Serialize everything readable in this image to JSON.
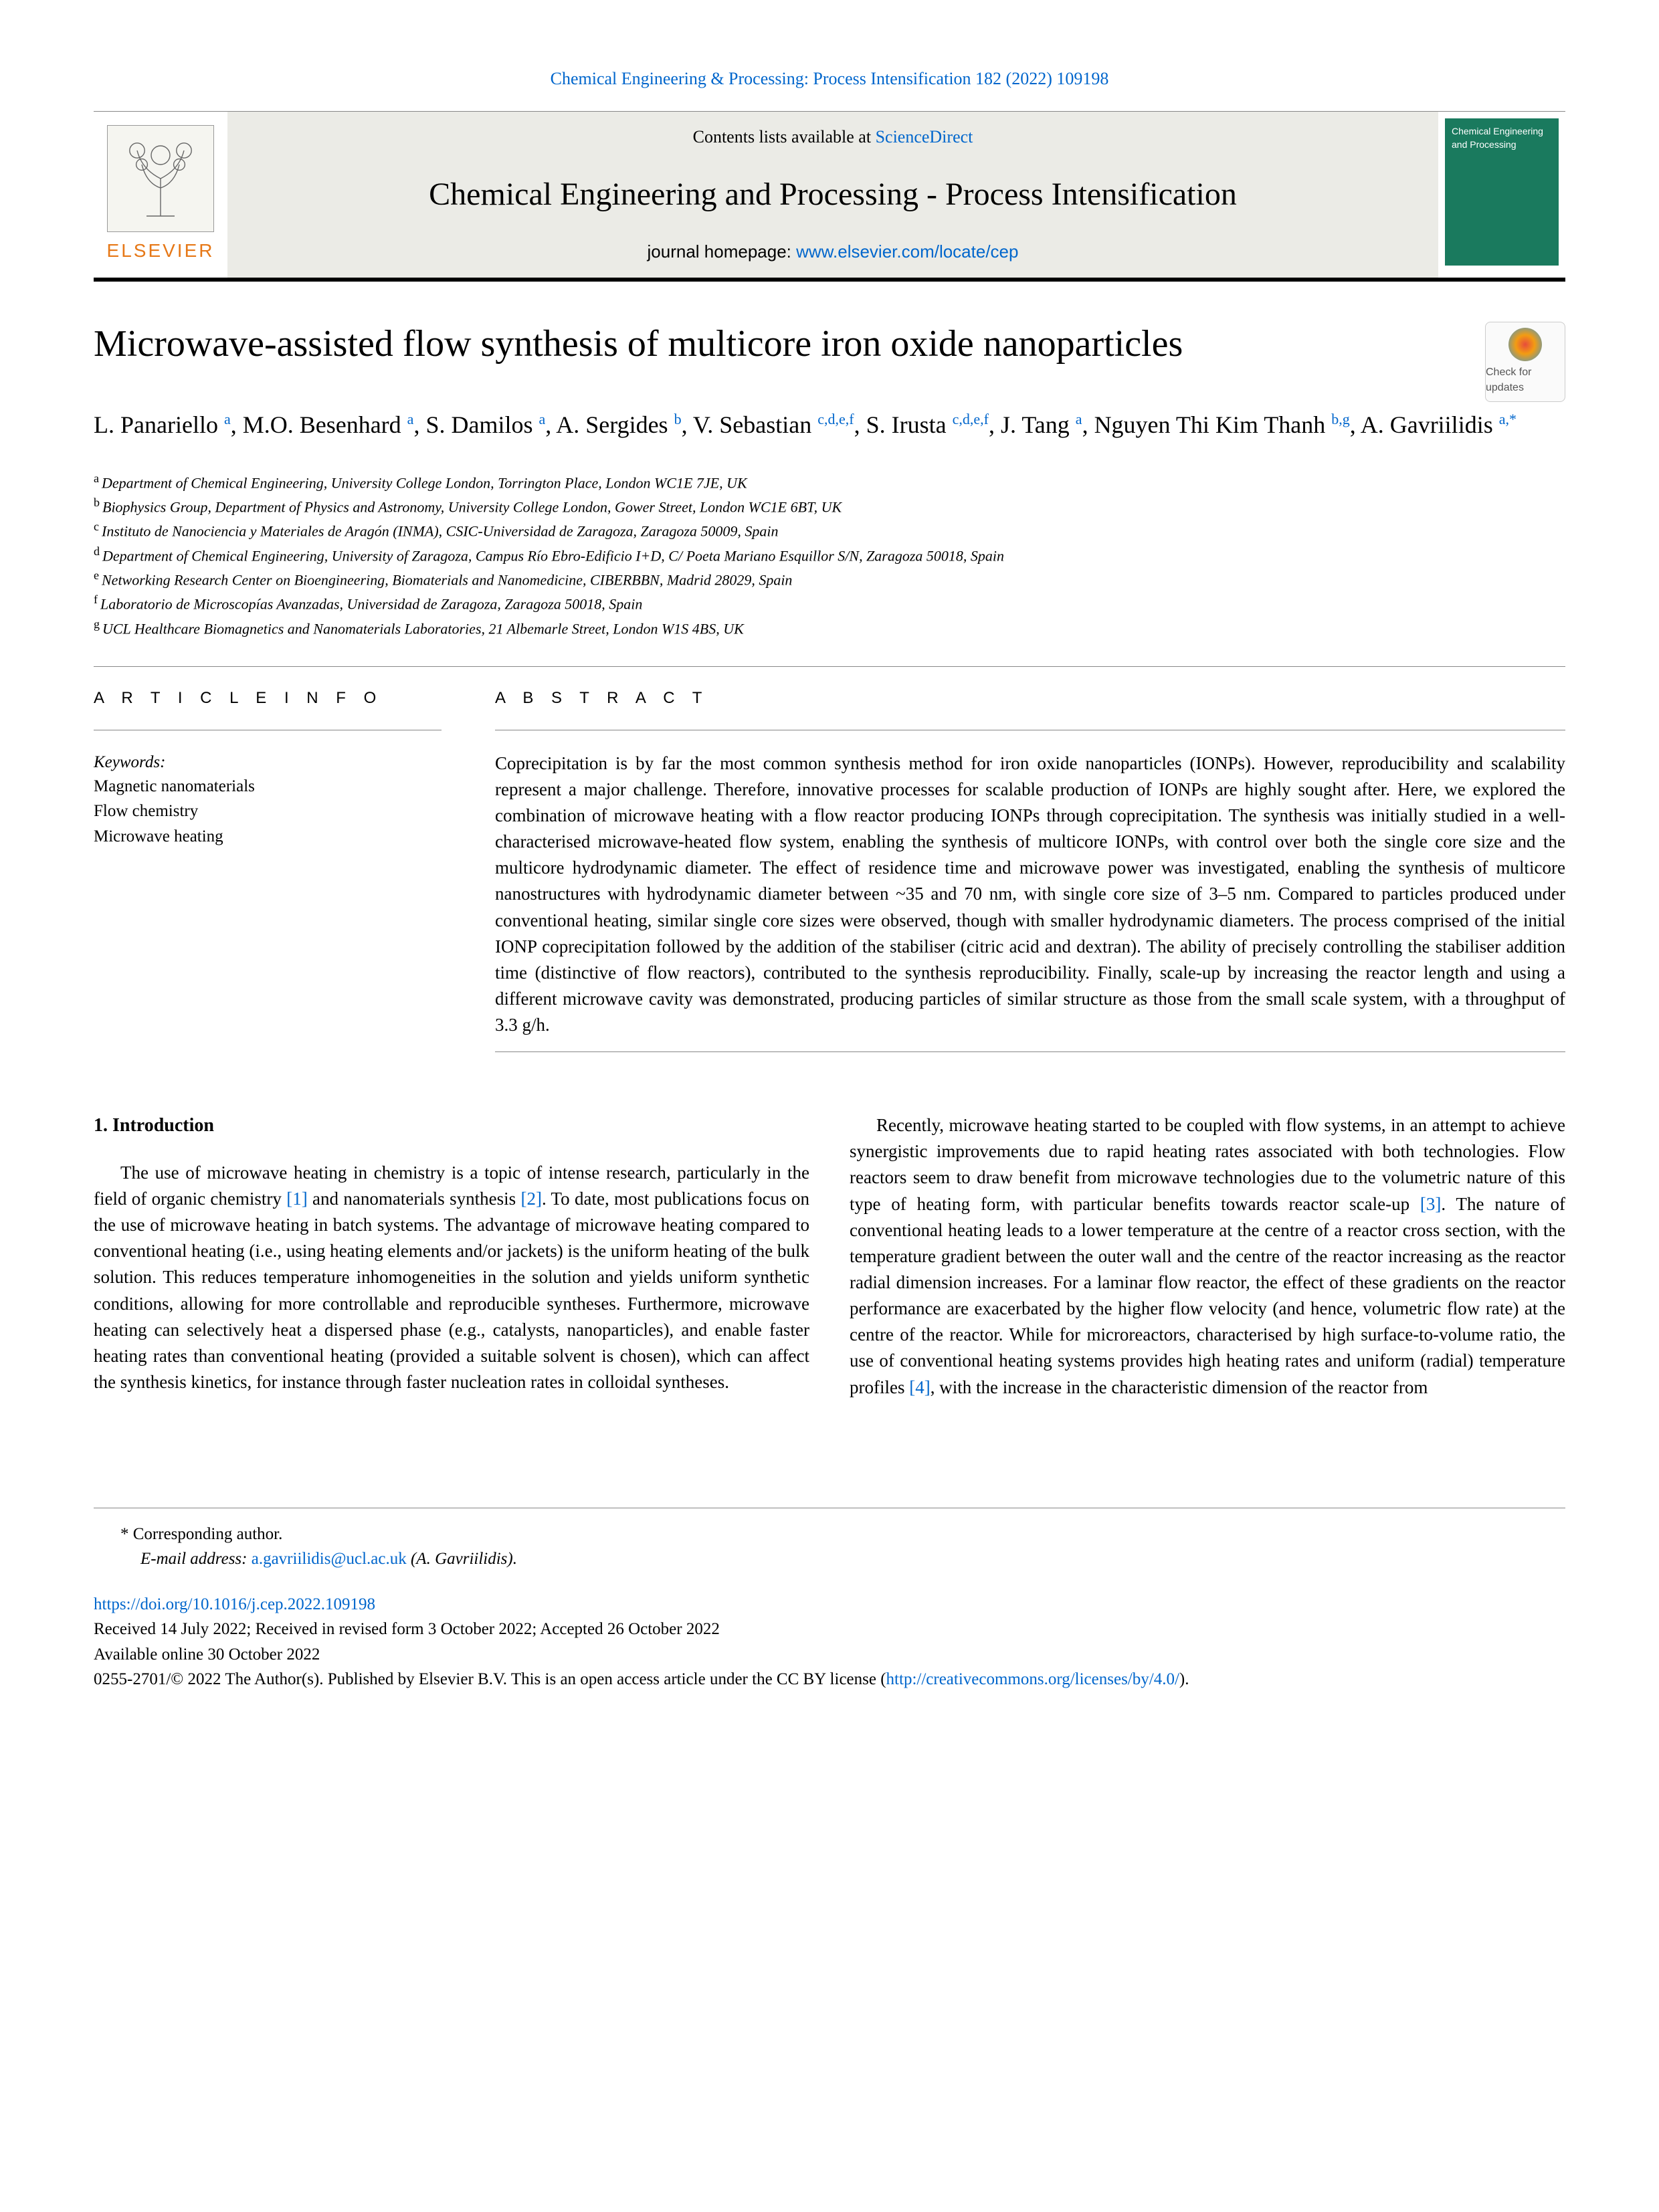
{
  "citation": "Chemical Engineering & Processing: Process Intensification 182 (2022) 109198",
  "contents_prefix": "Contents lists available at ",
  "contents_link": "ScienceDirect",
  "journal_name": "Chemical Engineering and Processing - Process Intensification",
  "homepage_prefix": "journal homepage: ",
  "homepage_url": "www.elsevier.com/locate/cep",
  "elsevier_label": "ELSEVIER",
  "cover_text": "Chemical Engineering and Processing",
  "check_updates": "Check for updates",
  "title": "Microwave-assisted flow synthesis of multicore iron oxide nanoparticles",
  "authors": [
    {
      "name": "L. Panariello",
      "aff": "a"
    },
    {
      "name": "M.O. Besenhard",
      "aff": "a"
    },
    {
      "name": "S. Damilos",
      "aff": "a"
    },
    {
      "name": "A. Sergides",
      "aff": "b"
    },
    {
      "name": "V. Sebastian",
      "aff": "c,d,e,f"
    },
    {
      "name": "S. Irusta",
      "aff": "c,d,e,f"
    },
    {
      "name": "J. Tang",
      "aff": "a"
    },
    {
      "name": "Nguyen Thi Kim Thanh",
      "aff": "b,g"
    },
    {
      "name": "A. Gavriilidis",
      "aff": "a,*"
    }
  ],
  "affiliations": [
    {
      "sup": "a",
      "text": "Department of Chemical Engineering, University College London, Torrington Place, London WC1E 7JE, UK"
    },
    {
      "sup": "b",
      "text": "Biophysics Group, Department of Physics and Astronomy, University College London, Gower Street, London WC1E 6BT, UK"
    },
    {
      "sup": "c",
      "text": "Instituto de Nanociencia y Materiales de Aragón (INMA), CSIC-Universidad de Zaragoza, Zaragoza 50009, Spain"
    },
    {
      "sup": "d",
      "text": "Department of Chemical Engineering, University of Zaragoza, Campus Río Ebro-Edificio I+D, C/ Poeta Mariano Esquillor S/N, Zaragoza 50018, Spain"
    },
    {
      "sup": "e",
      "text": "Networking Research Center on Bioengineering, Biomaterials and Nanomedicine, CIBERBBN, Madrid 28029, Spain"
    },
    {
      "sup": "f",
      "text": "Laboratorio de Microscopías Avanzadas, Universidad de Zaragoza, Zaragoza 50018, Spain"
    },
    {
      "sup": "g",
      "text": "UCL Healthcare Biomagnetics and Nanomaterials Laboratories, 21 Albemarle Street, London W1S 4BS, UK"
    }
  ],
  "article_info_label": "A R T I C L E  I N F O",
  "keywords_label": "Keywords:",
  "keywords": [
    "Magnetic nanomaterials",
    "Flow chemistry",
    "Microwave heating"
  ],
  "abstract_label": "A B S T R A C T",
  "abstract": "Coprecipitation is by far the most common synthesis method for iron oxide nanoparticles (IONPs). However, reproducibility and scalability represent a major challenge. Therefore, innovative processes for scalable production of IONPs are highly sought after. Here, we explored the combination of microwave heating with a flow reactor producing IONPs through coprecipitation. The synthesis was initially studied in a well-characterised microwave-heated flow system, enabling the synthesis of multicore IONPs, with control over both the single core size and the multicore hydrodynamic diameter. The effect of residence time and microwave power was investigated, enabling the synthesis of multicore nanostructures with hydrodynamic diameter between ~35 and 70 nm, with single core size of 3–5 nm. Compared to particles produced under conventional heating, similar single core sizes were observed, though with smaller hydrodynamic diameters. The process comprised of the initial IONP coprecipitation followed by the addition of the stabiliser (citric acid and dextran). The ability of precisely controlling the stabiliser addition time (distinctive of flow reactors), contributed to the synthesis reproducibility. Finally, scale-up by increasing the reactor length and using a different microwave cavity was demonstrated, producing particles of similar structure as those from the small scale system, with a throughput of 3.3 g/h.",
  "section_1_heading": "1. Introduction",
  "intro_p1_a": "The use of microwave heating in chemistry is a topic of intense research, particularly in the field of organic chemistry ",
  "intro_p1_ref1": "[1]",
  "intro_p1_b": " and nanomaterials synthesis ",
  "intro_p1_ref2": "[2]",
  "intro_p1_c": ". To date, most publications focus on the use of microwave heating in batch systems. The advantage of microwave heating compared to conventional heating (i.e., using heating elements and/or jackets) is the uniform heating of the bulk solution. This reduces temperature inhomogeneities in the solution and yields uniform synthetic conditions, allowing for more controllable and reproducible syntheses. Furthermore, microwave heating can selectively heat a dispersed phase (e.g., catalysts, nanoparticles), and enable faster heating rates than conventional heating (provided a suitable solvent is chosen), which can affect the synthesis kinetics, for instance through faster nucleation rates in colloidal syntheses.",
  "intro_p2_a": "Recently, microwave heating started to be coupled with flow systems, in an attempt to achieve synergistic improvements due to rapid heating rates associated with both technologies. Flow reactors seem to draw benefit from microwave technologies due to the volumetric nature of this type of heating form, with particular benefits towards reactor scale-up ",
  "intro_p2_ref3": "[3]",
  "intro_p2_b": ". The nature of conventional heating leads to a lower temperature at the centre of a reactor cross section, with the temperature gradient between the outer wall and the centre of the reactor increasing as the reactor radial dimension increases. For a laminar flow reactor, the effect of these gradients on the reactor performance are exacerbated by the higher flow velocity (and hence, volumetric flow rate) at the centre of the reactor. While for microreactors, characterised by high surface-to-volume ratio, the use of conventional heating systems provides high heating rates and uniform (radial) temperature profiles ",
  "intro_p2_ref4": "[4]",
  "intro_p2_c": ", with the increase in the characteristic dimension of the reactor from",
  "corr_author": "* Corresponding author.",
  "email_label": "E-mail address: ",
  "email": "a.gavriilidis@ucl.ac.uk",
  "email_name": " (A. Gavriilidis).",
  "doi": "https://doi.org/10.1016/j.cep.2022.109198",
  "received": "Received 14 July 2022; Received in revised form 3 October 2022; Accepted 26 October 2022",
  "available": "Available online 30 October 2022",
  "copyright_a": "0255-2701/© 2022 The Author(s). Published by Elsevier B.V. This is an open access article under the CC BY license (",
  "copyright_link": "http://creativecommons.org/licenses/by/4.0/",
  "copyright_b": ").",
  "colors": {
    "link": "#0066cc",
    "elsevier_orange": "#e67817",
    "cover_bg": "#1a7a5e",
    "text": "#000000",
    "divider": "#888888"
  }
}
